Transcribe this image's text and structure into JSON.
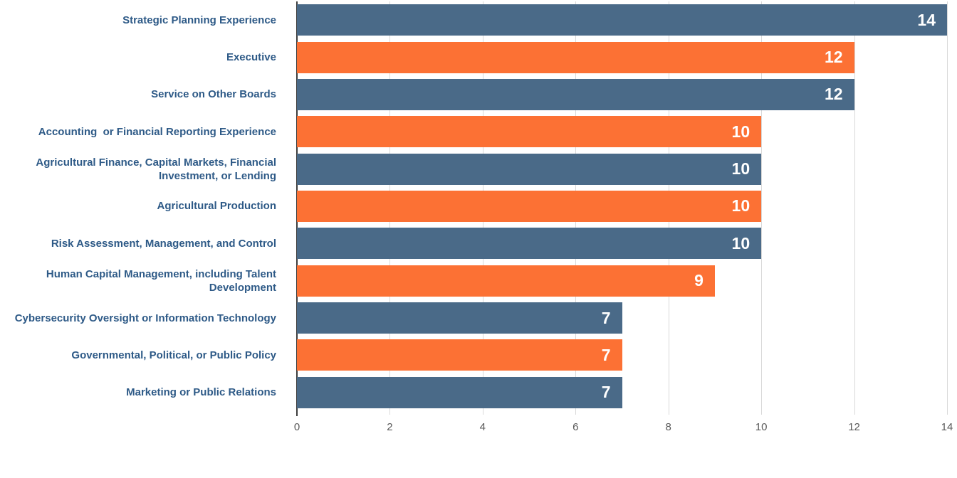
{
  "chart_data": {
    "type": "bar",
    "orientation": "horizontal",
    "title": "",
    "xlabel": "",
    "ylabel": "",
    "categories": [
      "Strategic Planning Experience",
      "Executive",
      "Service on Other Boards",
      "Accounting  or Financial Reporting Experience",
      "Agricultural Finance, Capital Markets, Financial\nInvestment, or Lending",
      "Agricultural Production",
      "Risk Assessment, Management, and Control",
      "Human Capital Management, including Talent\nDevelopment",
      "Cybersecurity Oversight or Information Technology",
      "Governmental, Political, or Public Policy",
      "Marketing or Public Relations"
    ],
    "values": [
      14,
      12,
      12,
      10,
      10,
      10,
      10,
      9,
      7,
      7,
      7
    ],
    "value_labels": [
      "14",
      "12",
      "12",
      "10",
      "10",
      "10",
      "10",
      "9",
      "7",
      "7",
      "7"
    ],
    "bar_colors": [
      "#4a6a88",
      "#fc7134",
      "#4a6a88",
      "#fc7134",
      "#4a6a88",
      "#fc7134",
      "#4a6a88",
      "#fc7134",
      "#4a6a88",
      "#fc7134",
      "#4a6a88"
    ],
    "xlim": [
      0,
      14
    ],
    "xticks": [
      0,
      2,
      4,
      6,
      8,
      10,
      12,
      14
    ],
    "xtick_labels": [
      "0",
      "2",
      "4",
      "6",
      "8",
      "10",
      "12",
      "14"
    ],
    "grid": true,
    "legend": false
  },
  "colors": {
    "bar_primary": "#4a6a88",
    "bar_secondary": "#fc7134",
    "category_text": "#2e5a87",
    "value_text": "#ffffff",
    "tick_text": "#595959",
    "gridline": "#d9d9d9",
    "axis_spine": "#3d3d3d",
    "background": "#ffffff"
  }
}
